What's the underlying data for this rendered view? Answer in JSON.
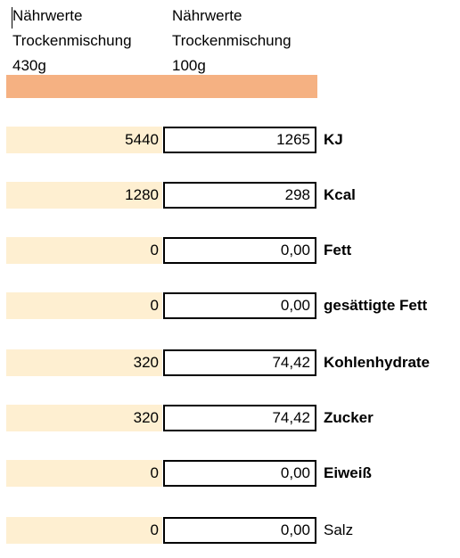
{
  "header": {
    "col1": [
      "Nährwerte",
      "Trockenmischung",
      "430g"
    ],
    "col2": [
      "Nährwerte",
      "Trockenmischung",
      "100g"
    ]
  },
  "accent_color": "#f5b182",
  "cell_fill_color": "#feefd1",
  "rows": [
    {
      "total": "5440",
      "per100": "1265",
      "label": "KJ"
    },
    {
      "total": "1280",
      "per100": "298",
      "label": "Kcal"
    },
    {
      "total": "0",
      "per100": "0,00",
      "label": "Fett"
    },
    {
      "total": "0",
      "per100": "0,00",
      "label": "gesättigte Fett"
    },
    {
      "total": "320",
      "per100": "74,42",
      "label": "Kohlenhydrate"
    },
    {
      "total": "320",
      "per100": "74,42",
      "label": "Zucker"
    },
    {
      "total": "0",
      "per100": "0,00",
      "label": "Eiweiß"
    },
    {
      "total": "0",
      "per100": "0,00",
      "label": "Salz"
    }
  ]
}
